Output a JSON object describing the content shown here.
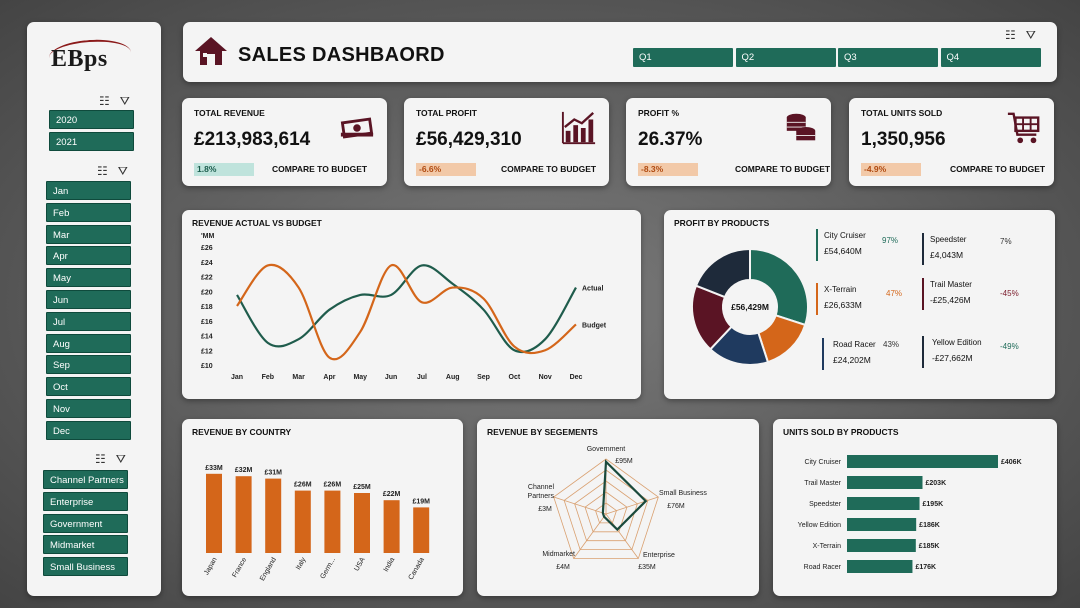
{
  "logo": "EBps",
  "header": {
    "title": "SALES DASHBAORD",
    "quarters": [
      "Q1",
      "Q2",
      "Q3",
      "Q4"
    ]
  },
  "sidebar": {
    "years": [
      "2020",
      "2021"
    ],
    "months": [
      "Jan",
      "Feb",
      "Mar",
      "Apr",
      "May",
      "Jun",
      "Jul",
      "Aug",
      "Sep",
      "Oct",
      "Nov",
      "Dec"
    ],
    "segments": [
      "Channel Partners",
      "Enterprise",
      "Government",
      "Midmarket",
      "Small Business"
    ]
  },
  "kpis": [
    {
      "title": "TOTAL REVENUE",
      "value": "£213,983,614",
      "pct": "1.8%",
      "pct_bg": "#bfe3dc",
      "pct_color": "#1a5c4c",
      "compare": "COMPARE TO BUDGET",
      "icon": "money-icon"
    },
    {
      "title": "TOTAL PROFIT",
      "value": "£56,429,310",
      "pct": "-6.6%",
      "pct_bg": "#f2c9a8",
      "pct_color": "#b04a10",
      "compare": "COMPARE TO BUDGET",
      "icon": "growth-chart-icon"
    },
    {
      "title": "PROFIT %",
      "value": "26.37%",
      "pct": "-8.3%",
      "pct_bg": "#f2c9a8",
      "pct_color": "#b04a10",
      "compare": "COMPARE TO BUDGET",
      "icon": "coins-icon"
    },
    {
      "title": "TOTAL UNITS SOLD",
      "value": "1,350,956",
      "pct": "-4.9%",
      "pct_bg": "#f2c9a8",
      "pct_color": "#b04a10",
      "compare": "COMPARE TO BUDGET",
      "icon": "shopping-cart-icon"
    }
  ],
  "colors": {
    "green": "#1f6b59",
    "orange": "#d4661a",
    "maroon": "#5a1424",
    "navy": "#1f3a5f",
    "dark": "#1e2a3a"
  },
  "panels": {
    "rev_vs_budget": "REVENUE ACTUAL VS BUDGET",
    "profit_products": "PROFIT  BY PRODUCTS",
    "rev_country": "REVENUE BY COUNTRY",
    "rev_segments": "REVENUE BY SEGEMENTS",
    "units_products": "UNITS SOLD BY PRODUCTS"
  },
  "chart_data": [
    {
      "type": "line",
      "title": "REVENUE ACTUAL VS BUDGET",
      "ylabel": "'MM",
      "yticks": [
        "£26",
        "£24",
        "£22",
        "£20",
        "£18",
        "£16",
        "£14",
        "£12",
        "£10"
      ],
      "ylim": [
        10,
        26
      ],
      "categories": [
        "Jan",
        "Feb",
        "Mar",
        "Apr",
        "May",
        "Jun",
        "Jul",
        "Aug",
        "Sep",
        "Oct",
        "Nov",
        "Dec"
      ],
      "series": [
        {
          "name": "Actual",
          "color": "#1f5c4c",
          "values": [
            19.5,
            13,
            13.5,
            17.5,
            19.5,
            19.5,
            23.5,
            21,
            17.5,
            12,
            13.5,
            20.5
          ]
        },
        {
          "name": "Budget",
          "color": "#d4661a",
          "values": [
            18,
            23.5,
            20.5,
            11,
            14.5,
            23.5,
            18.5,
            20.5,
            19,
            12.5,
            12,
            15.5
          ]
        }
      ],
      "legend": "right-end labels"
    },
    {
      "type": "pie",
      "title": "PROFIT  BY PRODUCTS",
      "center_label": "£56,429M",
      "slices": [
        {
          "name": "City Cruiser",
          "value": "£54,640M",
          "pct": "97%",
          "color": "#1f6b59",
          "pct_color": "#1f6b59",
          "share": 0.3
        },
        {
          "name": "X-Terrain",
          "value": "£26,633M",
          "pct": "47%",
          "color": "#d4661a",
          "pct_color": "#d4661a",
          "share": 0.15
        },
        {
          "name": "Road Racer",
          "value": "£24,202M",
          "pct": "43%",
          "color": "#1f3a5f",
          "pct_color": "#333333",
          "share": 0.14
        },
        {
          "name": "Trail Master",
          "value": "-£25,426M",
          "pct": "-45%",
          "color": "#5a1424",
          "pct_color": "#7a1a2a",
          "share": 0.15
        },
        {
          "name": "Yellow Edition",
          "value": "-£27,662M",
          "pct": "-49%",
          "color": "#1e2a3a",
          "pct_color": "#1f6b59",
          "share": 0.14
        },
        {
          "name": "Speedster",
          "value": "£4,043M",
          "pct": "7%",
          "color": "#1e2a3a",
          "pct_color": "#333333",
          "share": 0.12
        }
      ]
    },
    {
      "type": "bar",
      "title": "REVENUE BY COUNTRY",
      "categories": [
        "Japan",
        "France",
        "England",
        "Italy",
        "Germ...",
        "USA",
        "India",
        "Canada"
      ],
      "values": [
        33,
        32,
        31,
        26,
        26,
        25,
        22,
        19
      ],
      "labels": [
        "£33M",
        "£32M",
        "£31M",
        "£26M",
        "£26M",
        "£25M",
        "£22M",
        "£19M"
      ],
      "color": "#d4661a",
      "ylim": [
        0,
        36
      ]
    },
    {
      "type": "radar",
      "title": "REVENUE BY SEGEMENTS",
      "categories": [
        "Government",
        "Small Business",
        "Enterprise",
        "Midmarket",
        "Channel Partners"
      ],
      "values": [
        95,
        76,
        35,
        4,
        3
      ],
      "labels": [
        "£95M",
        "£76M",
        "£35M",
        "£4M",
        "£3M"
      ],
      "max": 100
    },
    {
      "type": "bar",
      "orientation": "horizontal",
      "title": "UNITS SOLD BY PRODUCTS",
      "categories": [
        "City Cruiser",
        "Trail Master",
        "Speedster",
        "Yellow Edition",
        "X-Terrain",
        "Road Racer"
      ],
      "values": [
        406,
        203,
        195,
        186,
        185,
        176
      ],
      "labels": [
        "£406K",
        "£203K",
        "£195K",
        "£186K",
        "£185K",
        "£176K"
      ],
      "color": "#1f6b59"
    }
  ]
}
